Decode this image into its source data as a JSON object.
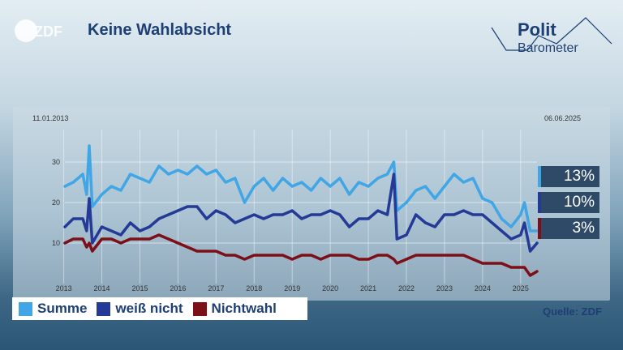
{
  "header": {
    "title": "Keine Wahlabsicht",
    "logo_text": "ZDF",
    "brand_line1": "Polit",
    "brand_line2": "Barometer"
  },
  "dates": {
    "start": "11.01.2013",
    "end": "06.06.2025"
  },
  "source": "Quelle: ZDF",
  "colors": {
    "summe": "#41a6e6",
    "weiss_nicht": "#243a96",
    "nichtwahl": "#7c0f17",
    "badge_bg": "#2e4a66"
  },
  "legend": [
    {
      "label": "Summe",
      "color": "#41a6e6"
    },
    {
      "label": "weiß nicht",
      "color": "#243a96"
    },
    {
      "label": "Nichtwahl",
      "color": "#7c0f17"
    }
  ],
  "badges": [
    {
      "value": "13%",
      "color": "#41a6e6"
    },
    {
      "value": "10%",
      "color": "#243a96"
    },
    {
      "value": "3%",
      "color": "#7c0f17"
    }
  ],
  "chart_data": {
    "type": "line",
    "title": "Keine Wahlabsicht",
    "xlabel": "",
    "ylabel": "",
    "xlim": [
      2013.03,
      2025.43
    ],
    "ylim": [
      0,
      38
    ],
    "y_ticks": [
      10,
      20,
      30
    ],
    "x_ticks": [
      2013,
      2014,
      2015,
      2016,
      2017,
      2018,
      2019,
      2020,
      2021,
      2022,
      2023,
      2024,
      2025
    ],
    "x_tick_labels": [
      "2013",
      "2014",
      "2015",
      "2016",
      "2017",
      "2018",
      "2019",
      "2020",
      "2021",
      "2022",
      "2023",
      "2024",
      "2025"
    ],
    "y_tick_labels": [
      "10",
      "20",
      "30"
    ],
    "grid": true,
    "legend_position": "bottom-left",
    "x": [
      2013.03,
      2013.25,
      2013.5,
      2013.6,
      2013.67,
      2013.75,
      2014.0,
      2014.25,
      2014.5,
      2014.75,
      2015.0,
      2015.25,
      2015.5,
      2015.75,
      2016.0,
      2016.25,
      2016.5,
      2016.75,
      2017.0,
      2017.25,
      2017.5,
      2017.75,
      2018.0,
      2018.25,
      2018.5,
      2018.75,
      2019.0,
      2019.25,
      2019.5,
      2019.75,
      2020.0,
      2020.25,
      2020.5,
      2020.75,
      2021.0,
      2021.25,
      2021.5,
      2021.67,
      2021.75,
      2022.0,
      2022.25,
      2022.5,
      2022.75,
      2023.0,
      2023.25,
      2023.5,
      2023.75,
      2024.0,
      2024.25,
      2024.5,
      2024.75,
      2025.0,
      2025.1,
      2025.25,
      2025.43
    ],
    "series": [
      {
        "name": "Summe",
        "values": [
          24,
          25,
          27,
          22,
          34,
          19,
          22,
          24,
          23,
          27,
          26,
          25,
          29,
          27,
          28,
          27,
          29,
          27,
          28,
          25,
          26,
          20,
          24,
          26,
          23,
          26,
          24,
          25,
          23,
          26,
          24,
          26,
          22,
          25,
          24,
          26,
          27,
          30,
          18,
          20,
          23,
          24,
          21,
          24,
          27,
          25,
          26,
          21,
          20,
          16,
          14,
          17,
          20,
          13,
          13
        ]
      },
      {
        "name": "weiß nicht",
        "values": [
          14,
          16,
          16,
          13,
          21,
          10,
          14,
          13,
          12,
          15,
          13,
          14,
          16,
          17,
          18,
          19,
          19,
          16,
          18,
          17,
          15,
          16,
          17,
          16,
          17,
          17,
          18,
          16,
          17,
          17,
          18,
          17,
          14,
          16,
          16,
          18,
          17,
          27,
          11,
          12,
          17,
          15,
          14,
          17,
          17,
          18,
          17,
          17,
          15,
          13,
          11,
          12,
          15,
          8,
          10
        ]
      },
      {
        "name": "Nichtwahl",
        "values": [
          10,
          11,
          11,
          9,
          10,
          8,
          11,
          11,
          10,
          11,
          11,
          11,
          12,
          11,
          10,
          9,
          8,
          8,
          8,
          7,
          7,
          6,
          7,
          7,
          7,
          7,
          6,
          7,
          7,
          6,
          7,
          7,
          7,
          6,
          6,
          7,
          7,
          6,
          5,
          6,
          7,
          7,
          7,
          7,
          7,
          7,
          6,
          5,
          5,
          5,
          4,
          4,
          4,
          2,
          3
        ]
      }
    ]
  }
}
